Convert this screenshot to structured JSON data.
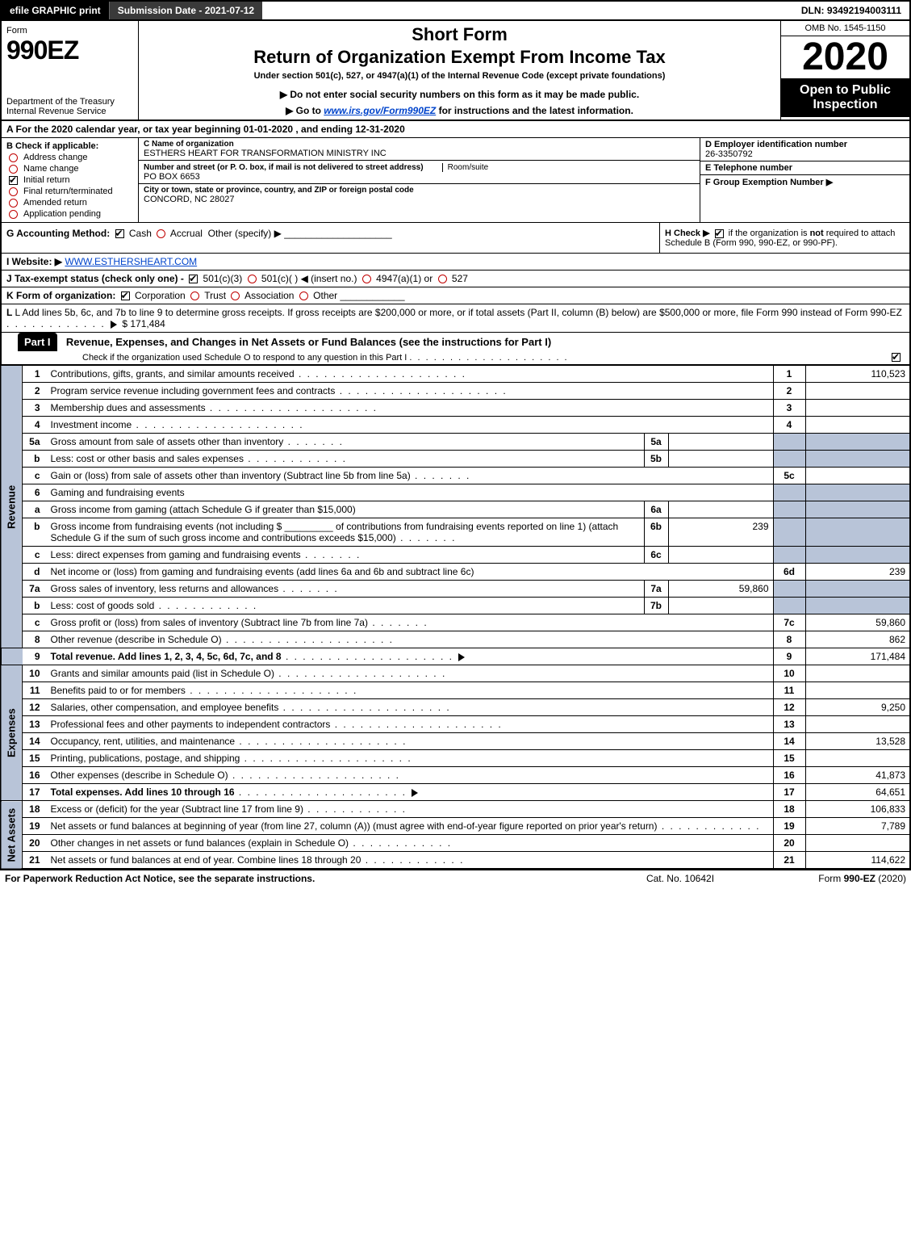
{
  "topbar": {
    "efile": "efile GRAPHIC print",
    "submission": "Submission Date - 2021-07-12",
    "dln": "DLN: 93492194003111"
  },
  "header": {
    "form_label": "Form",
    "form_no": "990EZ",
    "dept1": "Department of the Treasury",
    "dept2": "Internal Revenue Service",
    "short_form": "Short Form",
    "title": "Return of Organization Exempt From Income Tax",
    "under": "Under section 501(c), 527, or 4947(a)(1) of the Internal Revenue Code (except private foundations)",
    "note1_prefix": "▶ Do not enter social security numbers on this form as it may be made public.",
    "note2_prefix": "▶ Go to ",
    "note2_link": "www.irs.gov/Form990EZ",
    "note2_suffix": " for instructions and the latest information.",
    "omb": "OMB No. 1545-1150",
    "year": "2020",
    "open": "Open to Public Inspection"
  },
  "row_a": "A  For the 2020 calendar year, or tax year beginning 01-01-2020 , and ending 12-31-2020",
  "box_b": {
    "label": "B  Check if applicable:",
    "items": [
      "Address change",
      "Name change",
      "Initial return",
      "Final return/terminated",
      "Amended return",
      "Application pending"
    ],
    "checked_idx": 2
  },
  "box_c": {
    "c_label": "C Name of organization",
    "org": "ESTHERS HEART FOR TRANSFORMATION MINISTRY INC",
    "addr_label": "Number and street (or P. O. box, if mail is not delivered to street address)",
    "room_label": "Room/suite",
    "addr": "PO BOX 6653",
    "city_label": "City or town, state or province, country, and ZIP or foreign postal code",
    "city": "CONCORD, NC  28027"
  },
  "box_d": {
    "d_label": "D Employer identification number",
    "ein": "26-3350792",
    "e_label": "E Telephone number",
    "e_val": "",
    "f_label": "F Group Exemption Number  ▶",
    "f_val": ""
  },
  "row_g": {
    "g_label": "G Accounting Method:",
    "cash": "Cash",
    "accrual": "Accrual",
    "other": "Other (specify) ▶",
    "h_label": "H  Check ▶",
    "h_text1": " if the organization is ",
    "h_not": "not",
    "h_text2": " required to attach Schedule B (Form 990, 990-EZ, or 990-PF)."
  },
  "row_i": {
    "label": "I Website: ▶",
    "url": "WWW.ESTHERSHEART.COM"
  },
  "row_j": {
    "text": "J Tax-exempt status (check only one) - ",
    "a": "501(c)(3)",
    "b": "501(c)( ) ◀ (insert no.)",
    "c": "4947(a)(1) or",
    "d": "527"
  },
  "row_k": {
    "label": "K Form of organization:",
    "corp": "Corporation",
    "trust": "Trust",
    "assoc": "Association",
    "other": "Other"
  },
  "row_l": {
    "text1": "L Add lines 5b, 6c, and 7b to line 9 to determine gross receipts. If gross receipts are $200,000 or more, or if total assets (Part II, column (B) below) are $500,000 or more, file Form 990 instead of Form 990-EZ",
    "amount": "$ 171,484"
  },
  "part1": {
    "tab": "Part I",
    "title": "Revenue, Expenses, and Changes in Net Assets or Fund Balances (see the instructions for Part I)",
    "check": "Check if the organization used Schedule O to respond to any question in this Part I"
  },
  "vlabels": {
    "rev": "Revenue",
    "exp": "Expenses",
    "na": "Net Assets"
  },
  "lines": {
    "l1": {
      "n": "1",
      "d": "Contributions, gifts, grants, and similar amounts received",
      "num": "1",
      "amt": "110,523"
    },
    "l2": {
      "n": "2",
      "d": "Program service revenue including government fees and contracts",
      "num": "2",
      "amt": ""
    },
    "l3": {
      "n": "3",
      "d": "Membership dues and assessments",
      "num": "3",
      "amt": ""
    },
    "l4": {
      "n": "4",
      "d": "Investment income",
      "num": "4",
      "amt": ""
    },
    "l5a": {
      "n": "5a",
      "d": "Gross amount from sale of assets other than inventory",
      "sub": "5a",
      "sv": ""
    },
    "l5b": {
      "n": "b",
      "d": "Less: cost or other basis and sales expenses",
      "sub": "5b",
      "sv": ""
    },
    "l5c": {
      "n": "c",
      "d": "Gain or (loss) from sale of assets other than inventory (Subtract line 5b from line 5a)",
      "num": "5c",
      "amt": ""
    },
    "l6": {
      "n": "6",
      "d": "Gaming and fundraising events"
    },
    "l6a": {
      "n": "a",
      "d": "Gross income from gaming (attach Schedule G if greater than $15,000)",
      "sub": "6a",
      "sv": ""
    },
    "l6b": {
      "n": "b",
      "d": "Gross income from fundraising events (not including $ _________ of contributions from fundraising events reported on line 1) (attach Schedule G if the sum of such gross income and contributions exceeds $15,000)",
      "sub": "6b",
      "sv": "239"
    },
    "l6c": {
      "n": "c",
      "d": "Less: direct expenses from gaming and fundraising events",
      "sub": "6c",
      "sv": ""
    },
    "l6d": {
      "n": "d",
      "d": "Net income or (loss) from gaming and fundraising events (add lines 6a and 6b and subtract line 6c)",
      "num": "6d",
      "amt": "239"
    },
    "l7a": {
      "n": "7a",
      "d": "Gross sales of inventory, less returns and allowances",
      "sub": "7a",
      "sv": "59,860"
    },
    "l7b": {
      "n": "b",
      "d": "Less: cost of goods sold",
      "sub": "7b",
      "sv": ""
    },
    "l7c": {
      "n": "c",
      "d": "Gross profit or (loss) from sales of inventory (Subtract line 7b from line 7a)",
      "num": "7c",
      "amt": "59,860"
    },
    "l8": {
      "n": "8",
      "d": "Other revenue (describe in Schedule O)",
      "num": "8",
      "amt": "862"
    },
    "l9": {
      "n": "9",
      "d": "Total revenue. Add lines 1, 2, 3, 4, 5c, 6d, 7c, and 8",
      "num": "9",
      "amt": "171,484",
      "bold": true
    },
    "l10": {
      "n": "10",
      "d": "Grants and similar amounts paid (list in Schedule O)",
      "num": "10",
      "amt": ""
    },
    "l11": {
      "n": "11",
      "d": "Benefits paid to or for members",
      "num": "11",
      "amt": ""
    },
    "l12": {
      "n": "12",
      "d": "Salaries, other compensation, and employee benefits",
      "num": "12",
      "amt": "9,250"
    },
    "l13": {
      "n": "13",
      "d": "Professional fees and other payments to independent contractors",
      "num": "13",
      "amt": ""
    },
    "l14": {
      "n": "14",
      "d": "Occupancy, rent, utilities, and maintenance",
      "num": "14",
      "amt": "13,528"
    },
    "l15": {
      "n": "15",
      "d": "Printing, publications, postage, and shipping",
      "num": "15",
      "amt": ""
    },
    "l16": {
      "n": "16",
      "d": "Other expenses (describe in Schedule O)",
      "num": "16",
      "amt": "41,873"
    },
    "l17": {
      "n": "17",
      "d": "Total expenses. Add lines 10 through 16",
      "num": "17",
      "amt": "64,651",
      "bold": true
    },
    "l18": {
      "n": "18",
      "d": "Excess or (deficit) for the year (Subtract line 17 from line 9)",
      "num": "18",
      "amt": "106,833"
    },
    "l19": {
      "n": "19",
      "d": "Net assets or fund balances at beginning of year (from line 27, column (A)) (must agree with end-of-year figure reported on prior year's return)",
      "num": "19",
      "amt": "7,789"
    },
    "l20": {
      "n": "20",
      "d": "Other changes in net assets or fund balances (explain in Schedule O)",
      "num": "20",
      "amt": ""
    },
    "l21": {
      "n": "21",
      "d": "Net assets or fund balances at end of year. Combine lines 18 through 20",
      "num": "21",
      "amt": "114,622"
    }
  },
  "footer": {
    "left": "For Paperwork Reduction Act Notice, see the separate instructions.",
    "mid": "Cat. No. 10642I",
    "right_prefix": "Form ",
    "right_form": "990-EZ",
    "right_suffix": " (2020)"
  },
  "colors": {
    "grey_band": "#b8c4d8",
    "link": "#0044cc"
  }
}
